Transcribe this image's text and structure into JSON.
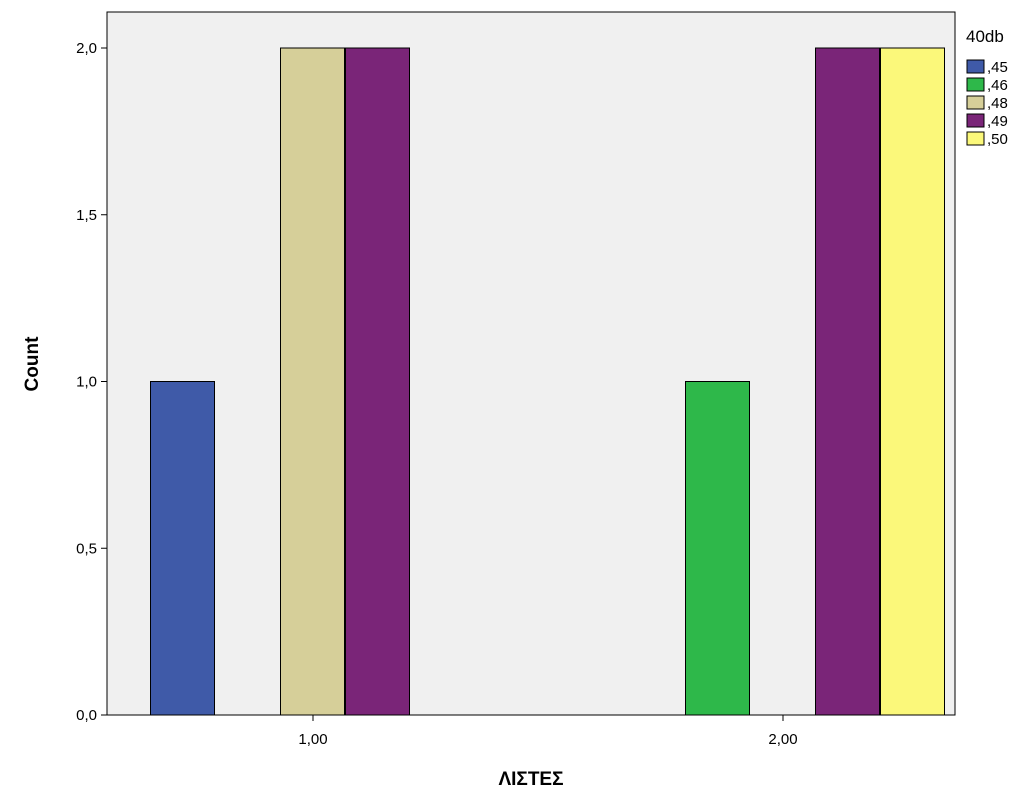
{
  "chart_data": {
    "type": "bar",
    "xlabel": "ΛΙΣΤΕΣ",
    "ylabel": "Count",
    "categories": [
      "1,00",
      "2,00"
    ],
    "ylim": [
      0,
      2.1
    ],
    "y_ticks": [
      {
        "value": 0,
        "label": "0,0"
      },
      {
        "value": 0.5,
        "label": "0,5"
      },
      {
        "value": 1.0,
        "label": "1,0"
      },
      {
        "value": 1.5,
        "label": "1,5"
      },
      {
        "value": 2.0,
        "label": "2,0"
      }
    ],
    "grid": false,
    "legend": {
      "position": "right",
      "title": "40db"
    },
    "series": [
      {
        "name": ",45",
        "color": "#3f5aa8",
        "values": [
          1,
          0
        ]
      },
      {
        "name": ",46",
        "color": "#2eb84a",
        "values": [
          0,
          1
        ]
      },
      {
        "name": ",48",
        "color": "#d6cf99",
        "values": [
          2,
          0
        ]
      },
      {
        "name": ",49",
        "color": "#7a2578",
        "values": [
          2,
          2
        ]
      },
      {
        "name": ",50",
        "color": "#fbf87a",
        "values": [
          0,
          2
        ]
      }
    ],
    "plot_background": "#f0f0f0"
  }
}
